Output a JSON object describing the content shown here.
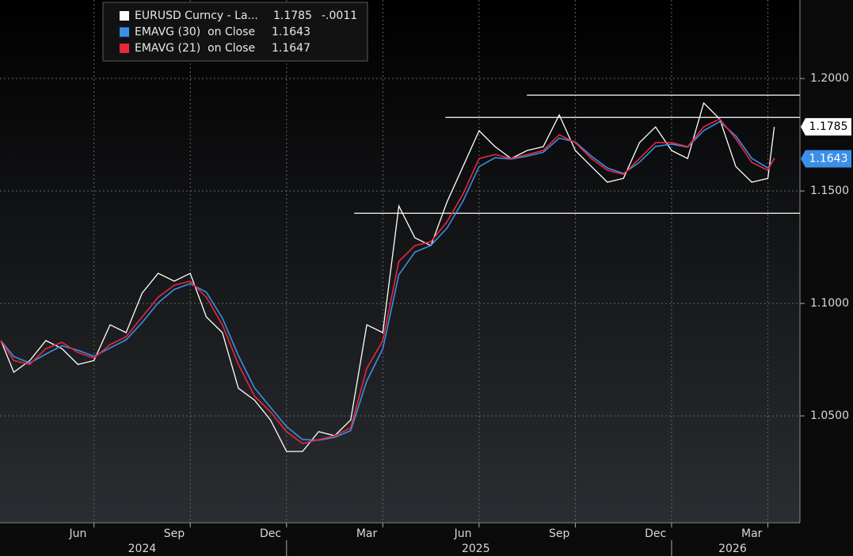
{
  "chart_data": {
    "type": "line",
    "x": [
      3.1,
      3.5,
      4,
      4.5,
      5,
      5.5,
      6,
      6.5,
      7,
      7.5,
      8,
      8.5,
      9,
      9.5,
      10,
      10.5,
      11,
      11.5,
      12,
      12.5,
      13,
      13.5,
      14,
      14.5,
      15,
      15.5,
      16,
      16.5,
      17,
      17.5,
      18,
      18.5,
      19,
      19.5,
      20,
      20.5,
      21,
      21.5,
      22,
      22.5,
      23,
      23.5,
      24,
      24.5,
      25,
      25.5,
      26,
      26.5,
      27,
      27.2
    ],
    "series": [
      {
        "name": "EURUSD Curncy - La...",
        "color": "#ffffff",
        "legend_value": "1.1785",
        "change": "-.0011",
        "last_label": "1.1785",
        "values": [
          1.0835,
          1.0694,
          1.0746,
          1.0835,
          1.0799,
          1.0729,
          1.0746,
          1.0905,
          1.087,
          1.1046,
          1.1134,
          1.1099,
          1.1134,
          1.094,
          1.087,
          1.0623,
          1.057,
          1.0482,
          1.0342,
          1.0342,
          1.043,
          1.0412,
          1.0482,
          1.0905,
          1.087,
          1.1433,
          1.1292,
          1.1257,
          1.1451,
          1.1609,
          1.1768,
          1.1697,
          1.1644,
          1.168,
          1.1697,
          1.1838,
          1.168,
          1.1609,
          1.1539,
          1.1556,
          1.1715,
          1.1785,
          1.168,
          1.1644,
          1.1891,
          1.182,
          1.1609,
          1.1539,
          1.1556,
          1.1785
        ]
      },
      {
        "name": "EMAVG (30)  on Close",
        "color": "#3b8fe8",
        "legend_value": "1.1643",
        "last_label": "1.1643",
        "values": [
          1.0835,
          1.0764,
          1.0735,
          1.0775,
          1.0812,
          1.0792,
          1.0765,
          1.0802,
          1.0838,
          1.0915,
          1.1003,
          1.1062,
          1.1088,
          1.105,
          1.0935,
          1.0768,
          1.0625,
          1.0538,
          1.0452,
          1.0395,
          1.0392,
          1.0405,
          1.0435,
          1.0655,
          1.0798,
          1.1128,
          1.1228,
          1.1258,
          1.1335,
          1.1455,
          1.1608,
          1.1648,
          1.1642,
          1.1655,
          1.1672,
          1.1735,
          1.1718,
          1.1655,
          1.1602,
          1.1578,
          1.1628,
          1.1698,
          1.1708,
          1.1695,
          1.1768,
          1.1808,
          1.1745,
          1.1645,
          1.1602,
          1.1643
        ]
      },
      {
        "name": "EMAVG (21)  on Close",
        "color": "#e8283c",
        "legend_value": "1.1647",
        "values": [
          1.0835,
          1.0746,
          1.0729,
          1.0799,
          1.0827,
          1.0782,
          1.0757,
          1.0817,
          1.0852,
          1.094,
          1.1028,
          1.1081,
          1.1099,
          1.1028,
          1.0905,
          1.0729,
          1.0588,
          1.0518,
          1.043,
          1.0377,
          1.0394,
          1.0412,
          1.0447,
          1.0711,
          1.0835,
          1.1187,
          1.1257,
          1.1275,
          1.1363,
          1.1486,
          1.1644,
          1.1662,
          1.1644,
          1.1662,
          1.168,
          1.175,
          1.1715,
          1.1644,
          1.1592,
          1.1574,
          1.1644,
          1.1715,
          1.1715,
          1.1697,
          1.1785,
          1.182,
          1.1732,
          1.1627,
          1.1592,
          1.1647
        ]
      }
    ],
    "xlim": [
      3.07,
      28
    ],
    "xticks": [
      {
        "value": 5.5,
        "label": "Jun"
      },
      {
        "value": 8.5,
        "label": "Sep"
      },
      {
        "value": 11.5,
        "label": "Dec"
      },
      {
        "value": 14.5,
        "label": "Mar"
      },
      {
        "value": 17.5,
        "label": "Jun"
      },
      {
        "value": 20.5,
        "label": "Sep"
      },
      {
        "value": 23.5,
        "label": "Dec"
      },
      {
        "value": 26.5,
        "label": "Mar"
      }
    ],
    "xgrid": [
      6,
      9,
      12,
      15,
      18,
      21,
      24,
      27
    ],
    "years": [
      {
        "value": 7.5,
        "label": "2024"
      },
      {
        "value": 17.9,
        "label": "2025"
      },
      {
        "value": 25.9,
        "label": "2026"
      }
    ],
    "year_dividers": [
      12,
      24
    ],
    "ylim": [
      1.0025,
      1.2349
    ],
    "yticks": [
      {
        "value": 1.05,
        "label": "1.0500"
      },
      {
        "value": 1.1,
        "label": "1.1000"
      },
      {
        "value": 1.15,
        "label": "1.1500"
      },
      {
        "value": 1.2,
        "label": "1.2000"
      }
    ],
    "hlines": [
      {
        "value": 1.1827,
        "from": 16.95
      },
      {
        "value": 1.1926,
        "from": 19.49
      },
      {
        "value": 1.1401,
        "from": 14.11
      }
    ],
    "grid": true
  }
}
